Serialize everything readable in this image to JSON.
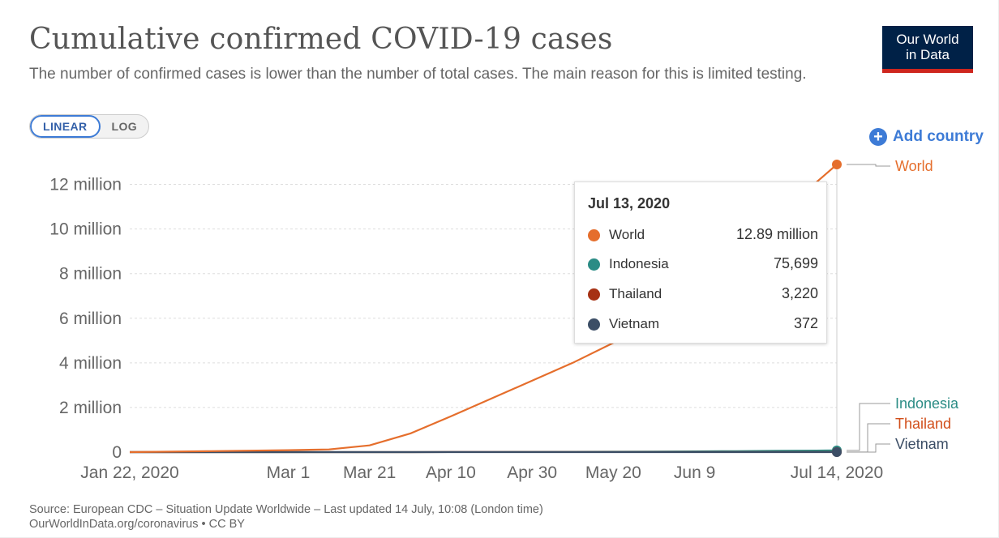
{
  "title": "Cumulative confirmed COVID-19 cases",
  "subtitle": "The number of confirmed cases is lower than the number of total cases. The main reason for this is limited testing.",
  "logo": {
    "line1": "Our World",
    "line2": "in Data"
  },
  "scale_toggle": {
    "linear": "LINEAR",
    "log": "LOG",
    "active": "linear"
  },
  "add_country_label": "Add country",
  "tooltip": {
    "date": "Jul 13, 2020",
    "rows": [
      {
        "name": "World",
        "value": "12.89 million",
        "color": "#e56e2c"
      },
      {
        "name": "Indonesia",
        "value": "75,699",
        "color": "#2b8c85"
      },
      {
        "name": "Thailand",
        "value": "3,220",
        "color": "#a63114"
      },
      {
        "name": "Vietnam",
        "value": "372",
        "color": "#3c4e66"
      }
    ]
  },
  "source_line1": "Source: European CDC – Situation Update Worldwide – Last updated 14 July, 10:08 (London time)",
  "source_line2": "OurWorldInData.org/coronavirus • CC BY",
  "chart_data": {
    "type": "line",
    "x_dates": [
      "2020-01-22",
      "2020-02-11",
      "2020-03-01",
      "2020-03-11",
      "2020-03-21",
      "2020-03-31",
      "2020-04-10",
      "2020-04-20",
      "2020-04-30",
      "2020-05-10",
      "2020-05-20",
      "2020-05-30",
      "2020-06-09",
      "2020-06-19",
      "2020-06-29",
      "2020-07-09",
      "2020-07-14"
    ],
    "x_ticks": [
      {
        "date": "2020-01-22",
        "label": "Jan 22, 2020"
      },
      {
        "date": "2020-03-01",
        "label": "Mar 1"
      },
      {
        "date": "2020-03-21",
        "label": "Mar 21"
      },
      {
        "date": "2020-04-10",
        "label": "Apr 10"
      },
      {
        "date": "2020-04-30",
        "label": "Apr 30"
      },
      {
        "date": "2020-05-20",
        "label": "May 20"
      },
      {
        "date": "2020-06-09",
        "label": "Jun 9"
      },
      {
        "date": "2020-07-14",
        "label": "Jul 14, 2020"
      }
    ],
    "y_ticks": [
      {
        "value": 0,
        "label": "0"
      },
      {
        "value": 2000000,
        "label": "2 million"
      },
      {
        "value": 4000000,
        "label": "4 million"
      },
      {
        "value": 6000000,
        "label": "6 million"
      },
      {
        "value": 8000000,
        "label": "8 million"
      },
      {
        "value": 10000000,
        "label": "10 million"
      },
      {
        "value": 12000000,
        "label": "12 million"
      }
    ],
    "ylim": [
      0,
      13000000
    ],
    "grid": true,
    "series": [
      {
        "name": "World",
        "color": "#e56e2c",
        "values": [
          555,
          43000,
          87000,
          119000,
          300000,
          830000,
          1600000,
          2400000,
          3200000,
          4000000,
          4900000,
          5900000,
          7100000,
          8500000,
          10100000,
          12100000,
          12890000
        ]
      },
      {
        "name": "Indonesia",
        "color": "#2b8c85",
        "values": [
          0,
          0,
          0,
          2,
          450,
          1500,
          3500,
          6800,
          10100,
          14000,
          19200,
          25800,
          33000,
          43800,
          56400,
          70700,
          75699
        ]
      },
      {
        "name": "Thailand",
        "color": "#a63114",
        "values": [
          4,
          32,
          42,
          59,
          411,
          1650,
          2470,
          2790,
          2950,
          3010,
          3040,
          3080,
          3120,
          3150,
          3170,
          3200,
          3220
        ]
      },
      {
        "name": "Vietnam",
        "color": "#3c4e66",
        "values": [
          0,
          15,
          16,
          39,
          94,
          212,
          257,
          268,
          270,
          288,
          324,
          328,
          332,
          342,
          355,
          369,
          372
        ]
      }
    ],
    "end_labels": [
      {
        "name": "World",
        "color": "#e56e2c"
      },
      {
        "name": "Indonesia",
        "color": "#2b8c85"
      },
      {
        "name": "Thailand",
        "color": "#d14e1a"
      },
      {
        "name": "Vietnam",
        "color": "#3c4e66"
      }
    ]
  }
}
